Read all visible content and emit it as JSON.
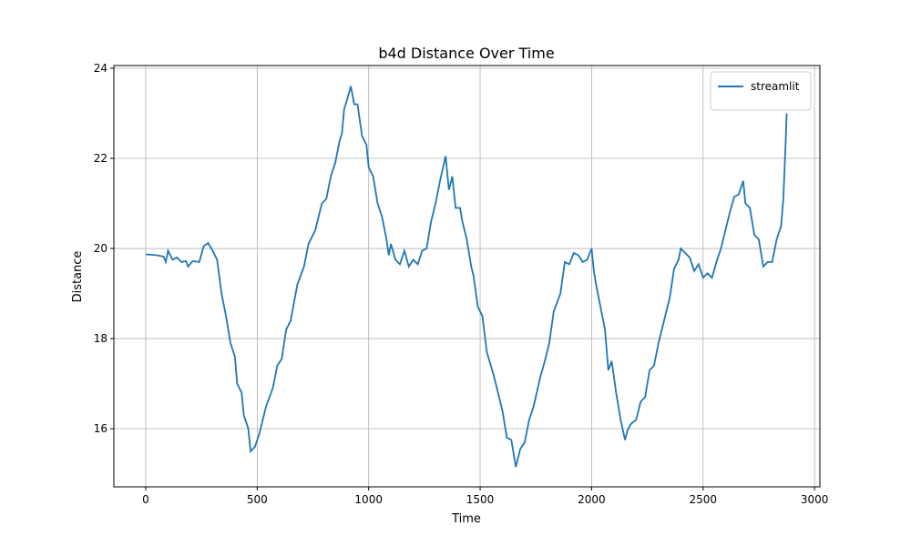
{
  "chart_data": {
    "type": "line",
    "title": "b4d Distance Over Time",
    "x_label": "Time",
    "y_label": "Distance",
    "x": [
      0,
      50,
      80,
      90,
      100,
      120,
      140,
      160,
      180,
      190,
      210,
      240,
      260,
      280,
      300,
      320,
      340,
      360,
      380,
      400,
      410,
      420,
      430,
      440,
      460,
      470,
      490,
      510,
      540,
      570,
      590,
      610,
      630,
      650,
      680,
      710,
      730,
      760,
      790,
      810,
      830,
      850,
      870,
      880,
      890,
      900,
      920,
      935,
      950,
      970,
      990,
      1000,
      1020,
      1040,
      1060,
      1080,
      1090,
      1100,
      1120,
      1140,
      1160,
      1180,
      1200,
      1220,
      1240,
      1260,
      1280,
      1300,
      1320,
      1345,
      1360,
      1375,
      1390,
      1410,
      1420,
      1440,
      1460,
      1470,
      1490,
      1510,
      1530,
      1560,
      1580,
      1600,
      1620,
      1640,
      1660,
      1680,
      1700,
      1720,
      1740,
      1770,
      1790,
      1810,
      1830,
      1860,
      1880,
      1900,
      1920,
      1940,
      1960,
      1980,
      2000,
      2010,
      2020,
      2040,
      2060,
      2075,
      2090,
      2110,
      2130,
      2150,
      2160,
      2175,
      2200,
      2220,
      2240,
      2260,
      2280,
      2300,
      2320,
      2350,
      2370,
      2390,
      2400,
      2420,
      2440,
      2460,
      2480,
      2500,
      2520,
      2540,
      2560,
      2580,
      2600,
      2620,
      2640,
      2660,
      2680,
      2690,
      2710,
      2730,
      2750,
      2770,
      2790,
      2810,
      2830,
      2850,
      2860,
      2870,
      2875
    ],
    "series": [
      {
        "name": "streamlit",
        "color": "#1f77b4",
        "values": [
          19.87,
          19.85,
          19.82,
          19.7,
          19.95,
          19.75,
          19.8,
          19.7,
          19.72,
          19.6,
          19.72,
          19.7,
          20.05,
          20.12,
          19.95,
          19.75,
          19.0,
          18.5,
          17.9,
          17.6,
          17.0,
          16.9,
          16.8,
          16.3,
          16.0,
          15.5,
          15.6,
          15.9,
          16.5,
          16.9,
          17.4,
          17.55,
          18.2,
          18.4,
          19.2,
          19.6,
          20.1,
          20.4,
          21.0,
          21.1,
          21.6,
          21.9,
          22.4,
          22.55,
          23.1,
          23.25,
          23.6,
          23.2,
          23.2,
          22.5,
          22.3,
          21.8,
          21.6,
          21.0,
          20.7,
          20.2,
          19.85,
          20.1,
          19.75,
          19.65,
          19.95,
          19.6,
          19.75,
          19.65,
          19.95,
          20.0,
          20.6,
          21.0,
          21.5,
          22.05,
          21.3,
          21.6,
          20.9,
          20.9,
          20.6,
          20.2,
          19.6,
          19.4,
          18.7,
          18.5,
          17.7,
          17.2,
          16.8,
          16.4,
          15.8,
          15.75,
          15.15,
          15.55,
          15.7,
          16.2,
          16.5,
          17.15,
          17.5,
          17.9,
          18.6,
          19.0,
          19.7,
          19.65,
          19.9,
          19.85,
          19.7,
          19.75,
          20.0,
          19.5,
          19.2,
          18.7,
          18.2,
          17.3,
          17.5,
          16.8,
          16.2,
          15.75,
          15.95,
          16.1,
          16.2,
          16.6,
          16.7,
          17.3,
          17.4,
          17.9,
          18.3,
          18.9,
          19.55,
          19.75,
          20.0,
          19.9,
          19.8,
          19.5,
          19.65,
          19.35,
          19.45,
          19.35,
          19.7,
          20.0,
          20.4,
          20.8,
          21.15,
          21.2,
          21.5,
          21.0,
          20.9,
          20.3,
          20.2,
          19.6,
          19.7,
          19.7,
          20.2,
          20.5,
          21.1,
          22.3,
          23.0
        ]
      }
    ],
    "xlim": [
      -143,
      3024
    ],
    "ylim": [
      14.71,
      24.06
    ],
    "xticks": [
      0,
      500,
      1000,
      1500,
      2000,
      2500,
      3000
    ],
    "yticks": [
      16,
      18,
      20,
      22,
      24
    ],
    "grid": true,
    "legend": "upper right"
  }
}
